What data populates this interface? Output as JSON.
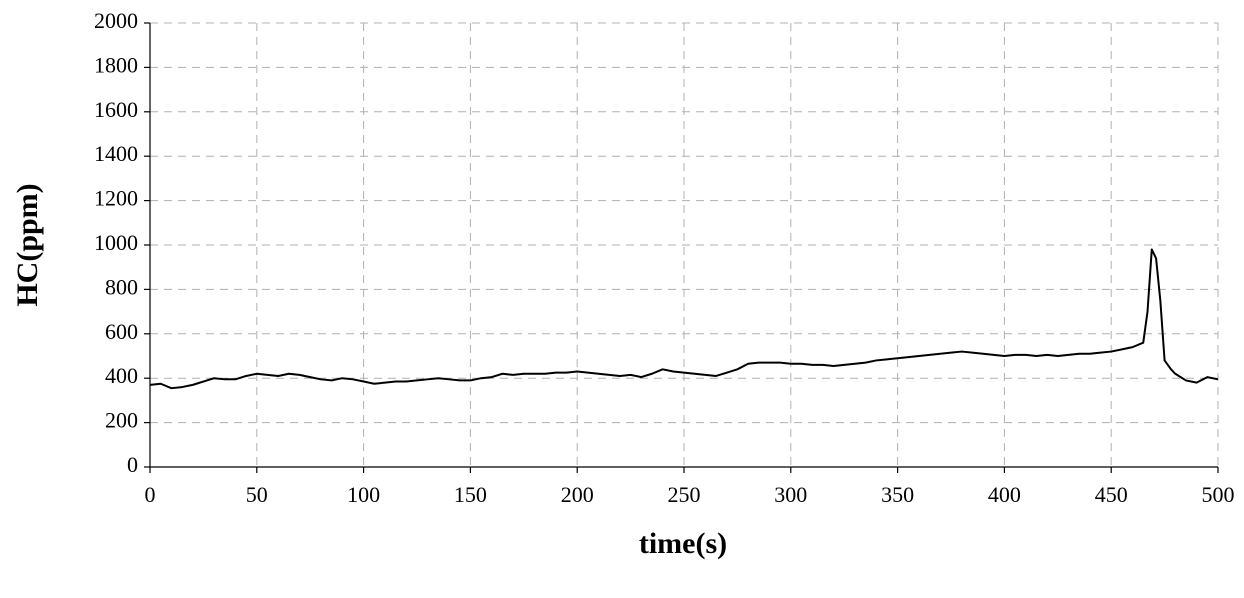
{
  "chart_data": {
    "type": "line",
    "xlabel": "time(s)",
    "ylabel": "HC(ppm)",
    "x": [
      0,
      5,
      10,
      15,
      20,
      25,
      30,
      35,
      40,
      45,
      50,
      55,
      60,
      65,
      70,
      75,
      80,
      85,
      90,
      95,
      100,
      105,
      110,
      115,
      120,
      125,
      130,
      135,
      140,
      145,
      150,
      155,
      160,
      165,
      170,
      175,
      180,
      185,
      190,
      195,
      200,
      205,
      210,
      215,
      220,
      225,
      230,
      235,
      240,
      245,
      250,
      255,
      260,
      265,
      270,
      275,
      280,
      285,
      290,
      295,
      300,
      305,
      310,
      315,
      320,
      325,
      330,
      335,
      340,
      345,
      350,
      355,
      360,
      365,
      370,
      375,
      380,
      385,
      390,
      395,
      400,
      405,
      410,
      415,
      420,
      425,
      430,
      435,
      440,
      445,
      450,
      455,
      460,
      465,
      467,
      469,
      471,
      473,
      475,
      478,
      480,
      485,
      490,
      495,
      500
    ],
    "series": [
      {
        "name": "HC",
        "color": "#000000",
        "values": [
          370,
          375,
          355,
          360,
          370,
          385,
          400,
          395,
          395,
          410,
          420,
          415,
          410,
          420,
          415,
          405,
          395,
          390,
          400,
          395,
          385,
          375,
          380,
          385,
          385,
          390,
          395,
          400,
          395,
          390,
          390,
          400,
          405,
          420,
          415,
          420,
          420,
          420,
          425,
          425,
          430,
          425,
          420,
          415,
          410,
          415,
          405,
          420,
          440,
          430,
          425,
          420,
          415,
          410,
          425,
          440,
          465,
          470,
          470,
          470,
          465,
          465,
          460,
          460,
          455,
          460,
          465,
          470,
          480,
          485,
          490,
          495,
          500,
          505,
          510,
          515,
          520,
          515,
          510,
          505,
          500,
          505,
          505,
          500,
          505,
          500,
          505,
          510,
          510,
          515,
          520,
          530,
          540,
          560,
          700,
          980,
          940,
          750,
          480,
          440,
          420,
          390,
          380,
          405,
          395
        ]
      }
    ],
    "xlim": [
      0,
      500
    ],
    "xticks": [
      0,
      50,
      100,
      150,
      200,
      250,
      300,
      350,
      400,
      450,
      500
    ],
    "ylim": [
      0,
      2000
    ],
    "yticks": [
      0,
      200,
      400,
      600,
      800,
      1000,
      1200,
      1400,
      1600,
      1800,
      2000
    ],
    "grid": true
  }
}
